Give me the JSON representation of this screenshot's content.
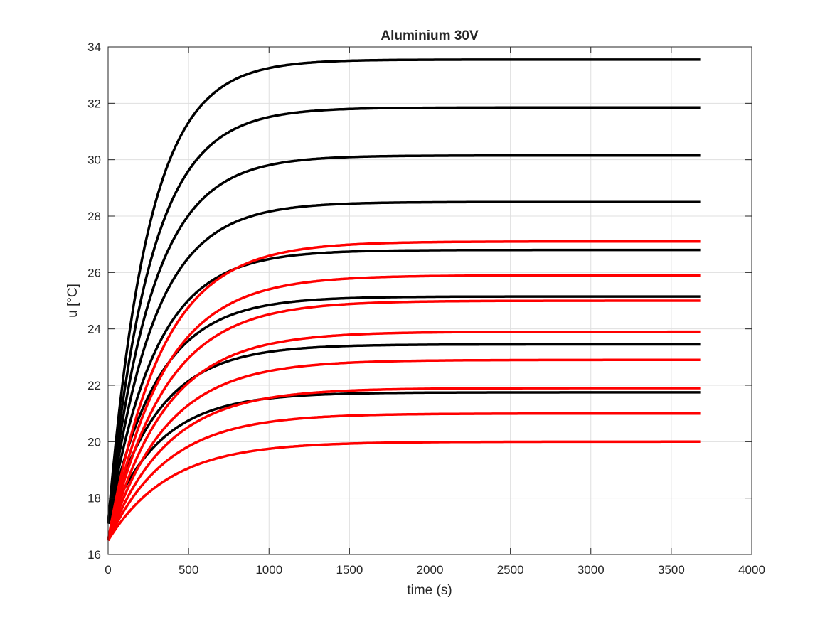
{
  "chart_data": {
    "type": "line",
    "title": "Aluminium 30V",
    "xlabel": "time (s)",
    "ylabel": "u [°C]",
    "xlim": [
      0,
      4000
    ],
    "ylim": [
      16,
      34
    ],
    "xticks": [
      0,
      500,
      1000,
      1500,
      2000,
      2500,
      3000,
      3500,
      4000
    ],
    "yticks": [
      16,
      18,
      20,
      22,
      24,
      26,
      28,
      30,
      32,
      34
    ],
    "grid": true,
    "legend": "none",
    "t_end": 3680,
    "colors": {
      "model": "#000000",
      "measured": "#ff0000",
      "grid": "#dfdfdf",
      "axis": "#262626"
    },
    "series": [
      {
        "group": "model",
        "y0": 17.1,
        "y_final": 33.55,
        "tau": 250,
        "points": [
          [
            0,
            17.1
          ],
          [
            250,
            27.6
          ],
          [
            500,
            31.4
          ],
          [
            750,
            32.8
          ],
          [
            1000,
            33.3
          ],
          [
            1500,
            33.5
          ],
          [
            2000,
            33.55
          ],
          [
            3680,
            33.55
          ]
        ]
      },
      {
        "group": "model",
        "y0": 17.1,
        "y_final": 31.85,
        "tau": 265,
        "points": [
          [
            0,
            17.1
          ],
          [
            250,
            26.3
          ],
          [
            500,
            29.6
          ],
          [
            750,
            31.0
          ],
          [
            1000,
            31.5
          ],
          [
            1500,
            31.8
          ],
          [
            2000,
            31.85
          ],
          [
            3680,
            31.85
          ]
        ]
      },
      {
        "group": "model",
        "y0": 17.1,
        "y_final": 30.15,
        "tau": 275,
        "points": [
          [
            0,
            17.1
          ],
          [
            250,
            25.1
          ],
          [
            500,
            28.0
          ],
          [
            750,
            29.3
          ],
          [
            1000,
            29.8
          ],
          [
            1500,
            30.1
          ],
          [
            2000,
            30.15
          ],
          [
            3680,
            30.15
          ]
        ]
      },
      {
        "group": "model",
        "y0": 17.1,
        "y_final": 28.5,
        "tau": 285,
        "points": [
          [
            0,
            17.1
          ],
          [
            250,
            23.8
          ],
          [
            500,
            26.6
          ],
          [
            750,
            27.7
          ],
          [
            1000,
            28.2
          ],
          [
            1500,
            28.45
          ],
          [
            2000,
            28.5
          ],
          [
            3680,
            28.5
          ]
        ]
      },
      {
        "group": "model",
        "y0": 17.1,
        "y_final": 26.8,
        "tau": 295,
        "points": [
          [
            0,
            17.1
          ],
          [
            250,
            22.6
          ],
          [
            500,
            25.0
          ],
          [
            750,
            26.1
          ],
          [
            1000,
            26.5
          ],
          [
            1500,
            26.75
          ],
          [
            2000,
            26.8
          ],
          [
            3680,
            26.8
          ]
        ]
      },
      {
        "group": "model",
        "y0": 17.1,
        "y_final": 25.15,
        "tau": 305,
        "points": [
          [
            0,
            17.1
          ],
          [
            250,
            21.6
          ],
          [
            500,
            23.6
          ],
          [
            750,
            24.5
          ],
          [
            1000,
            24.9
          ],
          [
            1500,
            25.1
          ],
          [
            2000,
            25.15
          ],
          [
            3680,
            25.15
          ]
        ]
      },
      {
        "group": "model",
        "y0": 17.1,
        "y_final": 23.45,
        "tau": 315,
        "points": [
          [
            0,
            17.1
          ],
          [
            250,
            20.4
          ],
          [
            500,
            22.2
          ],
          [
            750,
            22.9
          ],
          [
            1000,
            23.2
          ],
          [
            1500,
            23.4
          ],
          [
            2000,
            23.45
          ],
          [
            3680,
            23.45
          ]
        ]
      },
      {
        "group": "model",
        "y0": 17.1,
        "y_final": 21.75,
        "tau": 325,
        "points": [
          [
            0,
            17.1
          ],
          [
            250,
            19.2
          ],
          [
            500,
            20.6
          ],
          [
            750,
            21.3
          ],
          [
            1000,
            21.6
          ],
          [
            1500,
            21.7
          ],
          [
            2000,
            21.75
          ],
          [
            3680,
            21.75
          ]
        ]
      },
      {
        "group": "measured",
        "y0": 16.5,
        "y_final": 27.1,
        "tau": 330,
        "points": [
          [
            0,
            16.5
          ],
          [
            250,
            23.3
          ],
          [
            500,
            25.3
          ],
          [
            750,
            26.2
          ],
          [
            1000,
            26.55
          ],
          [
            1500,
            26.75
          ],
          [
            2000,
            26.9
          ],
          [
            3000,
            27.0
          ],
          [
            3680,
            27.1
          ]
        ]
      },
      {
        "group": "measured",
        "y0": 16.5,
        "y_final": 25.9,
        "tau": 340,
        "points": [
          [
            0,
            16.5
          ],
          [
            250,
            21.8
          ],
          [
            500,
            24.0
          ],
          [
            750,
            24.9
          ],
          [
            1000,
            25.3
          ],
          [
            1500,
            25.55
          ],
          [
            2000,
            25.65
          ],
          [
            3000,
            25.75
          ],
          [
            3680,
            25.9
          ]
        ]
      },
      {
        "group": "measured",
        "y0": 16.5,
        "y_final": 25.0,
        "tau": 350,
        "points": [
          [
            0,
            16.5
          ],
          [
            250,
            21.3
          ],
          [
            500,
            23.3
          ],
          [
            750,
            24.1
          ],
          [
            1000,
            24.5
          ],
          [
            1500,
            24.75
          ],
          [
            2000,
            24.85
          ],
          [
            3000,
            24.95
          ],
          [
            3680,
            25.0
          ]
        ]
      },
      {
        "group": "measured",
        "y0": 16.5,
        "y_final": 23.9,
        "tau": 355,
        "points": [
          [
            0,
            16.5
          ],
          [
            250,
            20.5
          ],
          [
            500,
            22.3
          ],
          [
            750,
            23.0
          ],
          [
            1000,
            23.35
          ],
          [
            1500,
            23.6
          ],
          [
            2000,
            23.7
          ],
          [
            3000,
            23.8
          ],
          [
            3680,
            23.9
          ]
        ]
      },
      {
        "group": "measured",
        "y0": 16.5,
        "y_final": 22.9,
        "tau": 360,
        "points": [
          [
            0,
            16.5
          ],
          [
            250,
            19.9
          ],
          [
            500,
            21.5
          ],
          [
            750,
            22.1
          ],
          [
            1000,
            22.45
          ],
          [
            1500,
            22.65
          ],
          [
            2000,
            22.75
          ],
          [
            3000,
            22.85
          ],
          [
            3680,
            22.9
          ]
        ]
      },
      {
        "group": "measured",
        "y0": 16.5,
        "y_final": 21.9,
        "tau": 365,
        "points": [
          [
            0,
            16.5
          ],
          [
            250,
            19.3
          ],
          [
            500,
            20.7
          ],
          [
            750,
            21.3
          ],
          [
            1000,
            21.55
          ],
          [
            1500,
            21.75
          ],
          [
            2000,
            21.8
          ],
          [
            3000,
            21.85
          ],
          [
            3680,
            21.9
          ]
        ]
      },
      {
        "group": "measured",
        "y0": 16.5,
        "y_final": 21.0,
        "tau": 370,
        "points": [
          [
            0,
            16.5
          ],
          [
            250,
            18.7
          ],
          [
            500,
            19.9
          ],
          [
            750,
            20.4
          ],
          [
            1000,
            20.65
          ],
          [
            1500,
            20.8
          ],
          [
            2000,
            20.85
          ],
          [
            3000,
            20.9
          ],
          [
            3680,
            21.0
          ]
        ]
      },
      {
        "group": "measured",
        "y0": 16.5,
        "y_final": 20.0,
        "tau": 380,
        "points": [
          [
            0,
            16.5
          ],
          [
            250,
            18.2
          ],
          [
            500,
            19.2
          ],
          [
            750,
            19.6
          ],
          [
            1000,
            19.8
          ],
          [
            1500,
            19.9
          ],
          [
            2000,
            19.95
          ],
          [
            3000,
            20.0
          ],
          [
            3680,
            20.0
          ]
        ]
      }
    ]
  }
}
